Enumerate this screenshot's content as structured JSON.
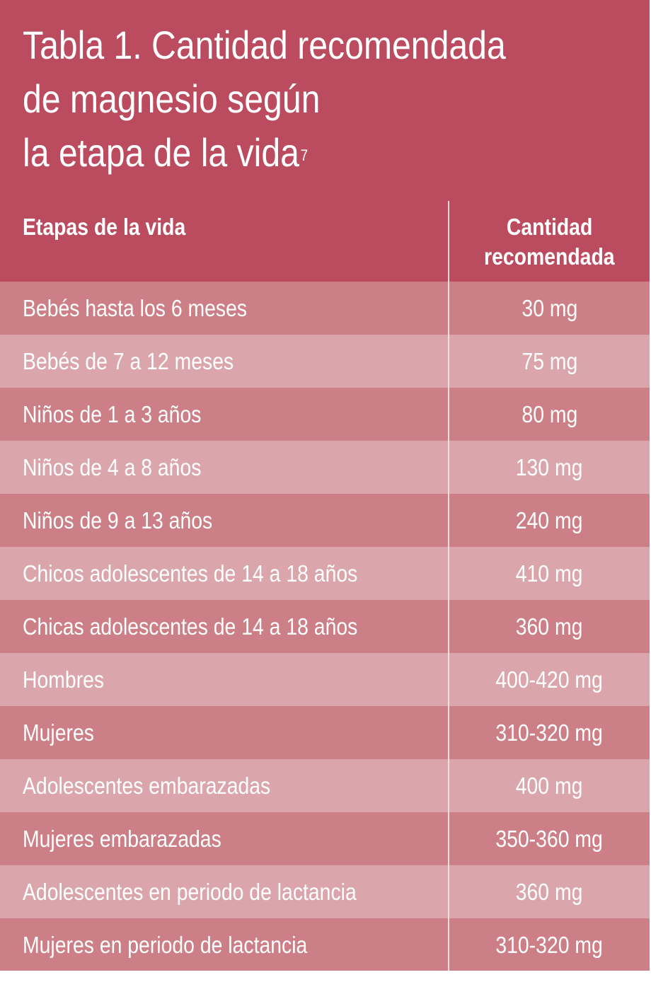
{
  "title": {
    "line1": "Tabla 1. Cantidad recomendada",
    "line2": "de magnesio según",
    "line3": "la etapa de la vida",
    "superscript": "7"
  },
  "table": {
    "headers": {
      "stage": "Etapas de la vida",
      "amount_line1": "Cantidad",
      "amount_line2": "recomendada"
    },
    "rows": [
      {
        "stage": "Bebés hasta los 6 meses",
        "amount": "30 mg"
      },
      {
        "stage": "Bebés de 7 a 12 meses",
        "amount": "75 mg"
      },
      {
        "stage": "Niños de 1 a 3 años",
        "amount": "80 mg"
      },
      {
        "stage": "Niños de 4 a 8 años",
        "amount": "130 mg"
      },
      {
        "stage": "Niños de 9 a 13 años",
        "amount": "240 mg"
      },
      {
        "stage": "Chicos adolescentes de 14 a 18 años",
        "amount": "410 mg"
      },
      {
        "stage": "Chicas adolescentes de 14 a 18 años",
        "amount": "360 mg"
      },
      {
        "stage": "Hombres",
        "amount": "400-420 mg"
      },
      {
        "stage": "Mujeres",
        "amount": "310-320 mg"
      },
      {
        "stage": "Adolescentes embarazadas",
        "amount": "400 mg"
      },
      {
        "stage": "Mujeres embarazadas",
        "amount": "350-360 mg"
      },
      {
        "stage": "Adolescentes en periodo de lactancia",
        "amount": "360 mg"
      },
      {
        "stage": "Mujeres en periodo de lactancia",
        "amount": "310-320 mg"
      }
    ]
  },
  "colors": {
    "header_bg": "#bb4b5e",
    "row_dark": "#cc7f86",
    "row_light": "#dba6ab",
    "text": "#ffffff"
  }
}
